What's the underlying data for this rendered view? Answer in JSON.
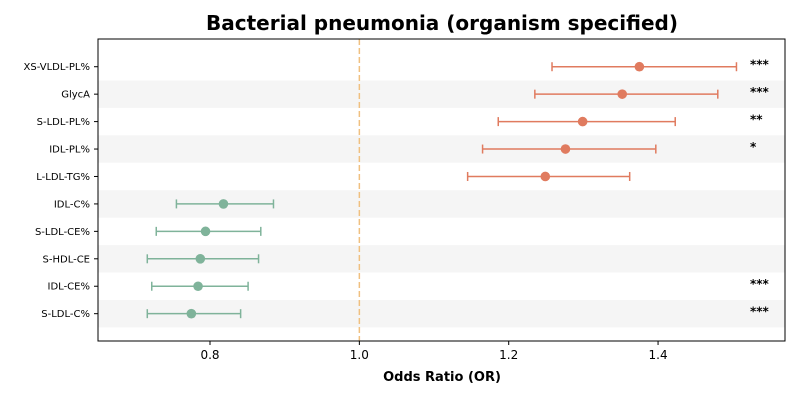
{
  "chart_data": {
    "type": "forest",
    "title": "Bacterial pneumonia (organism specified)",
    "xlabel": "Odds Ratio (OR)",
    "ylabel": "",
    "xlim": [
      0.65,
      1.57
    ],
    "xticks": [
      "0.8",
      "1.0",
      "1.2",
      "1.4"
    ],
    "xtick_values": [
      0.8,
      1.0,
      1.2,
      1.4
    ],
    "reference_line": 1.0,
    "grid": false,
    "colors": {
      "risk": "#e07b5f",
      "protective": "#7fb39a",
      "reference": "#f0c080",
      "band": "#f5f5f5"
    },
    "rows": [
      {
        "label": "XS-VLDL-PL%",
        "or": 1.375,
        "lo": 1.258,
        "hi": 1.505,
        "sig": "***",
        "group": "risk"
      },
      {
        "label": "GlycA",
        "or": 1.352,
        "lo": 1.235,
        "hi": 1.48,
        "sig": "***",
        "group": "risk"
      },
      {
        "label": "S-LDL-PL%",
        "or": 1.299,
        "lo": 1.186,
        "hi": 1.423,
        "sig": "**",
        "group": "risk"
      },
      {
        "label": "IDL-PL%",
        "or": 1.276,
        "lo": 1.165,
        "hi": 1.397,
        "sig": "*",
        "group": "risk"
      },
      {
        "label": "L-LDL-TG%",
        "or": 1.249,
        "lo": 1.145,
        "hi": 1.362,
        "sig": "",
        "group": "risk"
      },
      {
        "label": "IDL-C%",
        "or": 0.818,
        "lo": 0.755,
        "hi": 0.885,
        "sig": "",
        "group": "protective"
      },
      {
        "label": "S-LDL-CE%",
        "or": 0.794,
        "lo": 0.728,
        "hi": 0.868,
        "sig": "",
        "group": "protective"
      },
      {
        "label": "S-HDL-CE",
        "or": 0.787,
        "lo": 0.716,
        "hi": 0.865,
        "sig": "",
        "group": "protective"
      },
      {
        "label": "IDL-CE%",
        "or": 0.784,
        "lo": 0.722,
        "hi": 0.851,
        "sig": "***",
        "group": "protective"
      },
      {
        "label": "S-LDL-C%",
        "or": 0.775,
        "lo": 0.716,
        "hi": 0.841,
        "sig": "***",
        "group": "protective"
      }
    ]
  }
}
